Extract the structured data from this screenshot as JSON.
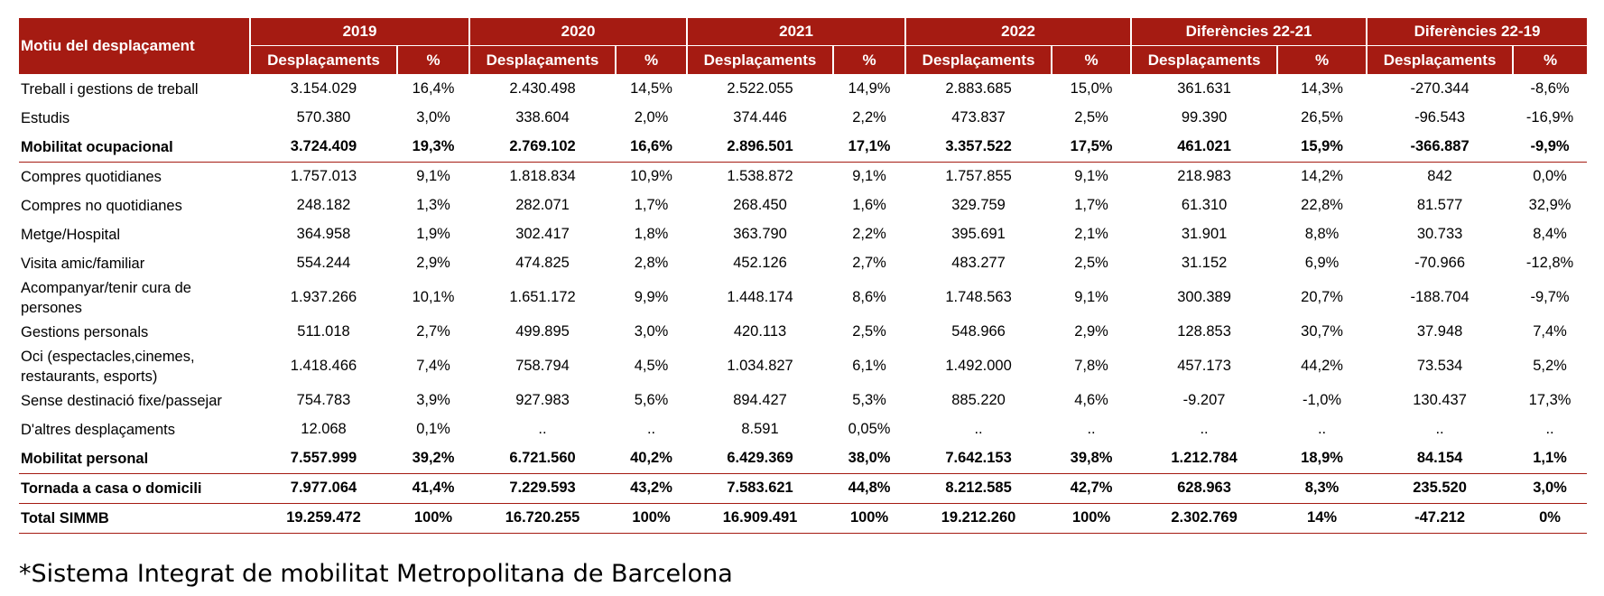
{
  "table": {
    "row_header": "Motiu del desplaçament",
    "groups": [
      "2019",
      "2020",
      "2021",
      "2022",
      "Diferències 22-21",
      "Diferències 22-19"
    ],
    "sub_desp": "Desplaçaments",
    "sub_pct": "%",
    "rows": [
      {
        "label": "Treball i gestions de treball",
        "cells": [
          "3.154.029",
          "16,4%",
          "2.430.498",
          "14,5%",
          "2.522.055",
          "14,9%",
          "2.883.685",
          "15,0%",
          "361.631",
          "14,3%",
          "-270.344",
          "-8,6%"
        ]
      },
      {
        "label": "Estudis",
        "cells": [
          "570.380",
          "3,0%",
          "338.604",
          "2,0%",
          "374.446",
          "2,2%",
          "473.837",
          "2,5%",
          "99.390",
          "26,5%",
          "-96.543",
          "-16,9%"
        ]
      },
      {
        "label": "Mobilitat ocupacional",
        "cells": [
          "3.724.409",
          "19,3%",
          "2.769.102",
          "16,6%",
          "2.896.501",
          "17,1%",
          "3.357.522",
          "17,5%",
          "461.021",
          "15,9%",
          "-366.887",
          "-9,9%"
        ]
      },
      {
        "label": "Compres quotidianes",
        "cells": [
          "1.757.013",
          "9,1%",
          "1.818.834",
          "10,9%",
          "1.538.872",
          "9,1%",
          "1.757.855",
          "9,1%",
          "218.983",
          "14,2%",
          "842",
          "0,0%"
        ]
      },
      {
        "label": "Compres no quotidianes",
        "cells": [
          "248.182",
          "1,3%",
          "282.071",
          "1,7%",
          "268.450",
          "1,6%",
          "329.759",
          "1,7%",
          "61.310",
          "22,8%",
          "81.577",
          "32,9%"
        ]
      },
      {
        "label": "Metge/Hospital",
        "cells": [
          "364.958",
          "1,9%",
          "302.417",
          "1,8%",
          "363.790",
          "2,2%",
          "395.691",
          "2,1%",
          "31.901",
          "8,8%",
          "30.733",
          "8,4%"
        ]
      },
      {
        "label": "Visita amic/familiar",
        "cells": [
          "554.244",
          "2,9%",
          "474.825",
          "2,8%",
          "452.126",
          "2,7%",
          "483.277",
          "2,5%",
          "31.152",
          "6,9%",
          "-70.966",
          "-12,8%"
        ]
      },
      {
        "label": "Acompanyar/tenir cura de persones",
        "cells": [
          "1.937.266",
          "10,1%",
          "1.651.172",
          "9,9%",
          "1.448.174",
          "8,6%",
          "1.748.563",
          "9,1%",
          "300.389",
          "20,7%",
          "-188.704",
          "-9,7%"
        ]
      },
      {
        "label": "Gestions personals",
        "cells": [
          "511.018",
          "2,7%",
          "499.895",
          "3,0%",
          "420.113",
          "2,5%",
          "548.966",
          "2,9%",
          "128.853",
          "30,7%",
          "37.948",
          "7,4%"
        ]
      },
      {
        "label": "Oci (espectacles,cinemes, restaurants, esports)",
        "cells": [
          "1.418.466",
          "7,4%",
          "758.794",
          "4,5%",
          "1.034.827",
          "6,1%",
          "1.492.000",
          "7,8%",
          "457.173",
          "44,2%",
          "73.534",
          "5,2%"
        ]
      },
      {
        "label": "Sense destinació fixe/passejar",
        "cells": [
          "754.783",
          "3,9%",
          "927.983",
          "5,6%",
          "894.427",
          "5,3%",
          "885.220",
          "4,6%",
          "-9.207",
          "-1,0%",
          "130.437",
          "17,3%"
        ]
      },
      {
        "label": "D'altres desplaçaments",
        "cells": [
          "12.068",
          "0,1%",
          "..",
          "..",
          "8.591",
          "0,05%",
          "..",
          "..",
          "..",
          "..",
          "..",
          ".."
        ]
      },
      {
        "label": "Mobilitat personal",
        "cells": [
          "7.557.999",
          "39,2%",
          "6.721.560",
          "40,2%",
          "6.429.369",
          "38,0%",
          "7.642.153",
          "39,8%",
          "1.212.784",
          "18,9%",
          "84.154",
          "1,1%"
        ]
      },
      {
        "label": "Tornada a casa o domicili",
        "cells": [
          "7.977.064",
          "41,4%",
          "7.229.593",
          "43,2%",
          "7.583.621",
          "44,8%",
          "8.212.585",
          "42,7%",
          "628.963",
          "8,3%",
          "235.520",
          "3,0%"
        ]
      },
      {
        "label": "Total SIMMB",
        "cells": [
          "19.259.472",
          "100%",
          "16.720.255",
          "100%",
          "16.909.491",
          "100%",
          "19.212.260",
          "100%",
          "2.302.769",
          "14%",
          "-47.212",
          "0%"
        ]
      }
    ]
  },
  "footnote": "*Sistema Integrat de mobilitat Metropolitana de Barcelona"
}
